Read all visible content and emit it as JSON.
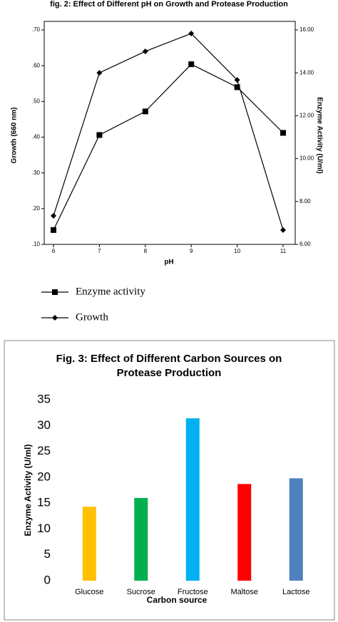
{
  "chart_data": [
    {
      "type": "line",
      "title": "fig. 2: Effect of Different pH on Growth and Protease Production",
      "x_label": "pH",
      "y_label": "Growth (660 nm)",
      "y2_label": "Enzyme Activity (U/ml)",
      "x": [
        6,
        7,
        8,
        9,
        10,
        11
      ],
      "xlim": [
        5.8,
        11.3
      ],
      "xticks": [
        6,
        7,
        8,
        9,
        10,
        11
      ],
      "ylim": [
        0.1,
        0.7
      ],
      "yticks": [
        {
          "value": 0.1,
          "label": ".10"
        },
        {
          "value": 0.2,
          "label": ".20"
        },
        {
          "value": 0.3,
          "label": ".30"
        },
        {
          "value": 0.4,
          "label": ".40"
        },
        {
          "value": 0.5,
          "label": ".50"
        },
        {
          "value": 0.6,
          "label": ".60"
        },
        {
          "value": 0.7,
          "label": ".70"
        }
      ],
      "y2lim": [
        6,
        16
      ],
      "y2ticks": [
        {
          "value": 6,
          "label": "6.00"
        },
        {
          "value": 8,
          "label": "8.00"
        },
        {
          "value": 10,
          "label": "10.00"
        },
        {
          "value": 12,
          "label": "12.00"
        },
        {
          "value": 14,
          "label": "14.00"
        },
        {
          "value": 16,
          "label": "16.00"
        }
      ],
      "series": [
        {
          "name": "Enzyme activity",
          "color": "#000000",
          "marker": "square",
          "axis": "y2",
          "values": [
            6.67,
            11.1,
            12.2,
            14.4,
            13.33,
            11.2
          ]
        },
        {
          "name": "Growth",
          "color": "#000000",
          "marker": "diamond",
          "values": [
            0.18,
            0.58,
            0.64,
            0.69,
            0.56,
            0.14
          ]
        }
      ]
    },
    {
      "type": "bar",
      "title": "Fig. 3: Effect of Different Carbon Sources on Protease Production",
      "x_label": "Carbon source",
      "y_label": "Enzyme Activity (U/ml)",
      "categories": [
        "Glucose",
        "Sucrose",
        "Fructose",
        "Maltose",
        "Lactose"
      ],
      "values": [
        14.3,
        16.0,
        31.4,
        18.7,
        19.8
      ],
      "colors": [
        "#ffc000",
        "#00b050",
        "#00b0f0",
        "#ff0000",
        "#4f81bd"
      ],
      "ylim": [
        0,
        35
      ],
      "yticks": [
        0,
        5,
        10,
        15,
        20,
        25,
        30,
        35
      ]
    }
  ]
}
